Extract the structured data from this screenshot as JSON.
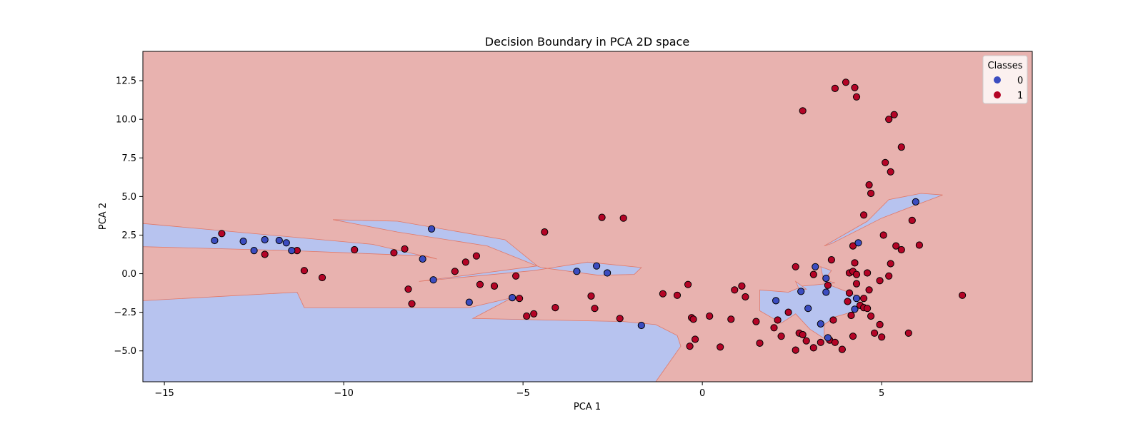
{
  "chart_data": {
    "type": "scatter",
    "title": "Decision Boundary in PCA 2D space",
    "xlabel": "PCA 1",
    "ylabel": "PCA 2",
    "xlim": [
      -15.6,
      9.2
    ],
    "ylim": [
      -7.0,
      14.4
    ],
    "xticks": [
      -15,
      -10,
      -5,
      0,
      5
    ],
    "xtick_labels": [
      "−15",
      "−10",
      "−5",
      "0",
      "5"
    ],
    "yticks": [
      -5.0,
      -2.5,
      0.0,
      2.5,
      5.0,
      7.5,
      10.0,
      12.5
    ],
    "ytick_labels": [
      "−5.0",
      "−2.5",
      "0.0",
      "2.5",
      "5.0",
      "7.5",
      "10.0",
      "12.5"
    ],
    "grid": false,
    "legend": {
      "title": "Classes",
      "placement": "top-right",
      "entries": [
        {
          "label": "0",
          "color": "#3b4cc0"
        },
        {
          "label": "1",
          "color": "#b40426"
        }
      ]
    },
    "colors": {
      "class0_point": "#3b4cc0",
      "class1_point": "#b40426",
      "class0_region": "#b7c3ef",
      "class1_region": "#e8b2af",
      "boundary": "#e07868"
    },
    "background_class": 1,
    "regions": [
      {
        "class": 0,
        "points": [
          [
            -15.6,
            3.25
          ],
          [
            -9.2,
            1.9
          ],
          [
            -7.4,
            0.95
          ],
          [
            -7.7,
            1.15
          ],
          [
            -11.5,
            1.5
          ],
          [
            -15.6,
            1.75
          ]
        ]
      },
      {
        "class": 0,
        "points": [
          [
            -10.3,
            3.5
          ],
          [
            -8.5,
            3.4
          ],
          [
            -5.5,
            2.2
          ],
          [
            -4.6,
            0.5
          ],
          [
            -7.9,
            -0.5
          ],
          [
            -4.7,
            0.2
          ],
          [
            -3.2,
            0.75
          ],
          [
            -1.7,
            0.4
          ],
          [
            -1.9,
            -0.05
          ],
          [
            -2.9,
            -0.1
          ],
          [
            -4.5,
            0.4
          ],
          [
            -6.0,
            1.8
          ],
          [
            -8.5,
            2.7
          ]
        ]
      },
      {
        "class": 0,
        "points": [
          [
            -15.6,
            -1.75
          ],
          [
            -11.3,
            -1.2
          ],
          [
            -11.1,
            -2.2
          ],
          [
            -6.5,
            -2.2
          ],
          [
            -5.3,
            -1.55
          ],
          [
            -6.4,
            -2.9
          ],
          [
            -2.2,
            -3.1
          ],
          [
            -1.3,
            -3.3
          ],
          [
            -0.7,
            -4.0
          ],
          [
            -0.6,
            -4.7
          ],
          [
            -1.3,
            -7.0
          ],
          [
            -15.6,
            -7.0
          ]
        ]
      },
      {
        "class": 0,
        "points": [
          [
            3.4,
            1.8
          ],
          [
            4.6,
            3.4
          ],
          [
            5.2,
            4.8
          ],
          [
            6.1,
            5.2
          ],
          [
            6.7,
            5.1
          ],
          [
            5.9,
            4.4
          ],
          [
            5.0,
            3.6
          ],
          [
            3.6,
            1.95
          ]
        ]
      },
      {
        "class": 0,
        "points": [
          [
            1.6,
            -1.05
          ],
          [
            2.4,
            -1.2
          ],
          [
            2.6,
            -1.0
          ],
          [
            2.8,
            -0.8
          ],
          [
            3.7,
            -0.6
          ],
          [
            3.4,
            -0.4
          ],
          [
            3.6,
            0.2
          ],
          [
            3.3,
            0.45
          ],
          [
            3.4,
            -0.6
          ],
          [
            4.4,
            -1.5
          ],
          [
            4.3,
            -2.4
          ],
          [
            4.0,
            -2.6
          ],
          [
            3.7,
            -2.8
          ],
          [
            3.4,
            -3.3
          ],
          [
            3.4,
            -4.2
          ],
          [
            3.0,
            -3.6
          ],
          [
            2.6,
            -2.6
          ],
          [
            2.2,
            -3.2
          ],
          [
            1.6,
            -2.4
          ]
        ]
      },
      {
        "class": 0,
        "points": [
          [
            2.6,
            -0.5
          ],
          [
            2.9,
            -1.0
          ],
          [
            2.7,
            -1.0
          ]
        ]
      }
    ],
    "points": [
      {
        "x": -13.4,
        "y": 2.6,
        "class": 1
      },
      {
        "x": -12.2,
        "y": 1.25,
        "class": 1
      },
      {
        "x": -11.3,
        "y": 1.5,
        "class": 1
      },
      {
        "x": -11.1,
        "y": 0.2,
        "class": 1
      },
      {
        "x": -10.6,
        "y": -0.25,
        "class": 1
      },
      {
        "x": -9.7,
        "y": 1.55,
        "class": 1
      },
      {
        "x": -8.6,
        "y": 1.35,
        "class": 1
      },
      {
        "x": -8.3,
        "y": 1.6,
        "class": 1
      },
      {
        "x": -8.2,
        "y": -1.0,
        "class": 1
      },
      {
        "x": -8.1,
        "y": -1.95,
        "class": 1
      },
      {
        "x": -6.9,
        "y": 0.15,
        "class": 1
      },
      {
        "x": -6.6,
        "y": 0.75,
        "class": 1
      },
      {
        "x": -6.3,
        "y": 1.15,
        "class": 1
      },
      {
        "x": -6.2,
        "y": -0.7,
        "class": 1
      },
      {
        "x": -5.8,
        "y": -0.8,
        "class": 1
      },
      {
        "x": -5.2,
        "y": -0.15,
        "class": 1
      },
      {
        "x": -5.1,
        "y": -1.6,
        "class": 1
      },
      {
        "x": -4.9,
        "y": -2.75,
        "class": 1
      },
      {
        "x": -4.7,
        "y": -2.6,
        "class": 1
      },
      {
        "x": -4.4,
        "y": 2.7,
        "class": 1
      },
      {
        "x": -4.1,
        "y": -2.2,
        "class": 1
      },
      {
        "x": -3.1,
        "y": -1.45,
        "class": 1
      },
      {
        "x": -3.0,
        "y": -2.25,
        "class": 1
      },
      {
        "x": -2.8,
        "y": 3.65,
        "class": 1
      },
      {
        "x": -2.3,
        "y": -2.9,
        "class": 1
      },
      {
        "x": -2.2,
        "y": 3.6,
        "class": 1
      },
      {
        "x": -1.1,
        "y": -1.3,
        "class": 1
      },
      {
        "x": -0.7,
        "y": -1.4,
        "class": 1
      },
      {
        "x": -0.4,
        "y": -0.7,
        "class": 1
      },
      {
        "x": -0.35,
        "y": -4.7,
        "class": 1
      },
      {
        "x": -0.3,
        "y": -2.85,
        "class": 1
      },
      {
        "x": -0.25,
        "y": -2.95,
        "class": 1
      },
      {
        "x": -0.2,
        "y": -4.25,
        "class": 1
      },
      {
        "x": 0.2,
        "y": -2.75,
        "class": 1
      },
      {
        "x": 0.5,
        "y": -4.75,
        "class": 1
      },
      {
        "x": 0.8,
        "y": -2.95,
        "class": 1
      },
      {
        "x": 0.9,
        "y": -1.05,
        "class": 1
      },
      {
        "x": 1.1,
        "y": -0.8,
        "class": 1
      },
      {
        "x": 1.2,
        "y": -1.5,
        "class": 1
      },
      {
        "x": 1.5,
        "y": -3.1,
        "class": 1
      },
      {
        "x": 1.6,
        "y": -4.5,
        "class": 1
      },
      {
        "x": 2.0,
        "y": -3.5,
        "class": 1
      },
      {
        "x": 2.1,
        "y": -3.0,
        "class": 1
      },
      {
        "x": 2.2,
        "y": -4.05,
        "class": 1
      },
      {
        "x": 2.4,
        "y": -2.5,
        "class": 1
      },
      {
        "x": 2.6,
        "y": 0.45,
        "class": 1
      },
      {
        "x": 2.6,
        "y": -4.95,
        "class": 1
      },
      {
        "x": 2.7,
        "y": -3.85,
        "class": 1
      },
      {
        "x": 2.8,
        "y": -3.95,
        "class": 1
      },
      {
        "x": 2.8,
        "y": 10.55,
        "class": 1
      },
      {
        "x": 2.9,
        "y": -4.35,
        "class": 1
      },
      {
        "x": 3.1,
        "y": -0.05,
        "class": 1
      },
      {
        "x": 3.1,
        "y": -4.8,
        "class": 1
      },
      {
        "x": 3.3,
        "y": -4.45,
        "class": 1
      },
      {
        "x": 3.5,
        "y": -0.75,
        "class": 1
      },
      {
        "x": 3.55,
        "y": -4.3,
        "class": 1
      },
      {
        "x": 3.6,
        "y": 0.9,
        "class": 1
      },
      {
        "x": 3.65,
        "y": -3.0,
        "class": 1
      },
      {
        "x": 3.7,
        "y": -4.45,
        "class": 1
      },
      {
        "x": 3.7,
        "y": 12.0,
        "class": 1
      },
      {
        "x": 3.9,
        "y": -4.9,
        "class": 1
      },
      {
        "x": 4.0,
        "y": 12.4,
        "class": 1
      },
      {
        "x": 4.05,
        "y": -1.8,
        "class": 1
      },
      {
        "x": 4.1,
        "y": -1.25,
        "class": 1
      },
      {
        "x": 4.1,
        "y": 0.05,
        "class": 1
      },
      {
        "x": 4.15,
        "y": -2.7,
        "class": 1
      },
      {
        "x": 4.2,
        "y": 0.15,
        "class": 1
      },
      {
        "x": 4.2,
        "y": -4.05,
        "class": 1
      },
      {
        "x": 4.2,
        "y": 1.8,
        "class": 1
      },
      {
        "x": 4.25,
        "y": 0.7,
        "class": 1
      },
      {
        "x": 4.25,
        "y": 12.05,
        "class": 1
      },
      {
        "x": 4.3,
        "y": 11.45,
        "class": 1
      },
      {
        "x": 4.3,
        "y": -0.05,
        "class": 1
      },
      {
        "x": 4.3,
        "y": -0.65,
        "class": 1
      },
      {
        "x": 4.4,
        "y": -2.05,
        "class": 1
      },
      {
        "x": 4.5,
        "y": 3.8,
        "class": 1
      },
      {
        "x": 4.5,
        "y": -1.6,
        "class": 1
      },
      {
        "x": 4.5,
        "y": -2.2,
        "class": 1
      },
      {
        "x": 4.6,
        "y": 0.05,
        "class": 1
      },
      {
        "x": 4.6,
        "y": -2.25,
        "class": 1
      },
      {
        "x": 4.65,
        "y": 5.75,
        "class": 1
      },
      {
        "x": 4.7,
        "y": 5.2,
        "class": 1
      },
      {
        "x": 4.65,
        "y": -1.05,
        "class": 1
      },
      {
        "x": 4.7,
        "y": -2.75,
        "class": 1
      },
      {
        "x": 4.8,
        "y": -3.85,
        "class": 1
      },
      {
        "x": 4.95,
        "y": -0.45,
        "class": 1
      },
      {
        "x": 4.95,
        "y": -3.3,
        "class": 1
      },
      {
        "x": 5.0,
        "y": -4.1,
        "class": 1
      },
      {
        "x": 5.05,
        "y": 2.5,
        "class": 1
      },
      {
        "x": 5.1,
        "y": 7.2,
        "class": 1
      },
      {
        "x": 5.2,
        "y": -0.15,
        "class": 1
      },
      {
        "x": 5.2,
        "y": 10.0,
        "class": 1
      },
      {
        "x": 5.25,
        "y": 0.65,
        "class": 1
      },
      {
        "x": 5.25,
        "y": 6.6,
        "class": 1
      },
      {
        "x": 5.35,
        "y": 10.3,
        "class": 1
      },
      {
        "x": 5.4,
        "y": 1.8,
        "class": 1
      },
      {
        "x": 5.55,
        "y": 1.55,
        "class": 1
      },
      {
        "x": 5.55,
        "y": 8.2,
        "class": 1
      },
      {
        "x": 5.75,
        "y": -3.85,
        "class": 1
      },
      {
        "x": 5.85,
        "y": 3.45,
        "class": 1
      },
      {
        "x": 6.05,
        "y": 1.85,
        "class": 1
      },
      {
        "x": 7.25,
        "y": -1.4,
        "class": 1
      },
      {
        "x": -13.6,
        "y": 2.15,
        "class": 0
      },
      {
        "x": -12.8,
        "y": 2.1,
        "class": 0
      },
      {
        "x": -12.5,
        "y": 1.5,
        "class": 0
      },
      {
        "x": -12.2,
        "y": 2.2,
        "class": 0
      },
      {
        "x": -11.8,
        "y": 2.15,
        "class": 0
      },
      {
        "x": -11.6,
        "y": 2.0,
        "class": 0
      },
      {
        "x": -11.45,
        "y": 1.5,
        "class": 0
      },
      {
        "x": -7.8,
        "y": 0.95,
        "class": 0
      },
      {
        "x": -7.55,
        "y": 2.9,
        "class": 0
      },
      {
        "x": -7.5,
        "y": -0.4,
        "class": 0
      },
      {
        "x": -6.5,
        "y": -1.85,
        "class": 0
      },
      {
        "x": -5.3,
        "y": -1.55,
        "class": 0
      },
      {
        "x": -3.5,
        "y": 0.15,
        "class": 0
      },
      {
        "x": -2.95,
        "y": 0.5,
        "class": 0
      },
      {
        "x": -2.65,
        "y": 0.05,
        "class": 0
      },
      {
        "x": -1.7,
        "y": -3.35,
        "class": 0
      },
      {
        "x": 2.05,
        "y": -1.75,
        "class": 0
      },
      {
        "x": 2.75,
        "y": -1.15,
        "class": 0
      },
      {
        "x": 2.95,
        "y": -2.25,
        "class": 0
      },
      {
        "x": 3.15,
        "y": 0.45,
        "class": 0
      },
      {
        "x": 3.3,
        "y": -3.25,
        "class": 0
      },
      {
        "x": 3.45,
        "y": -1.2,
        "class": 0
      },
      {
        "x": 3.45,
        "y": -0.3,
        "class": 0
      },
      {
        "x": 3.5,
        "y": -4.15,
        "class": 0
      },
      {
        "x": 4.25,
        "y": -2.3,
        "class": 0
      },
      {
        "x": 4.3,
        "y": -1.6,
        "class": 0
      },
      {
        "x": 4.35,
        "y": 2.0,
        "class": 0
      },
      {
        "x": 5.95,
        "y": 4.65,
        "class": 0
      }
    ]
  }
}
